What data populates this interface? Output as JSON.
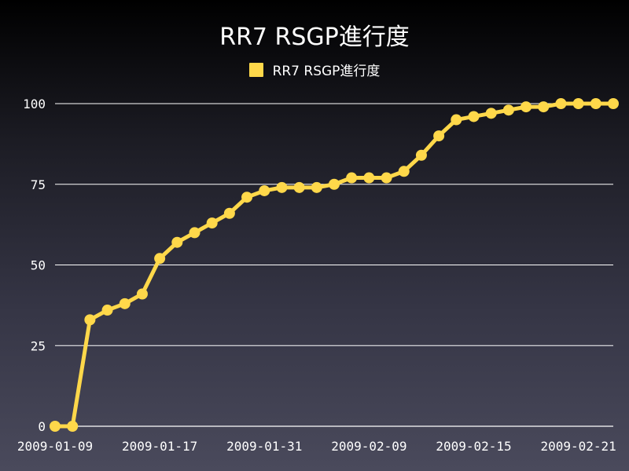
{
  "chart_data": {
    "type": "line",
    "title": "RR7 RSGP進行度",
    "xlabel": "",
    "ylabel": "",
    "ylim": [
      0,
      100
    ],
    "yticks": [
      0,
      25,
      50,
      75,
      100
    ],
    "x_tick_labels": [
      "2009-01-09",
      "2009-01-17",
      "2009-01-31",
      "2009-02-09",
      "2009-02-15",
      "2009-02-21"
    ],
    "x_tick_indices": [
      0,
      6,
      12,
      18,
      24,
      30
    ],
    "grid": true,
    "legend_position": "top-center",
    "colors": {
      "line": "#ffd84a",
      "grid": "#ffffff",
      "text": "#ffffff"
    },
    "series": [
      {
        "name": "RR7 RSGP進行度",
        "values": [
          0,
          0,
          33,
          36,
          38,
          41,
          52,
          57,
          60,
          63,
          66,
          71,
          73,
          74,
          74,
          74,
          75,
          77,
          77,
          77,
          79,
          84,
          90,
          95,
          96,
          97,
          98,
          99,
          99,
          100,
          100,
          100,
          100
        ]
      }
    ]
  }
}
